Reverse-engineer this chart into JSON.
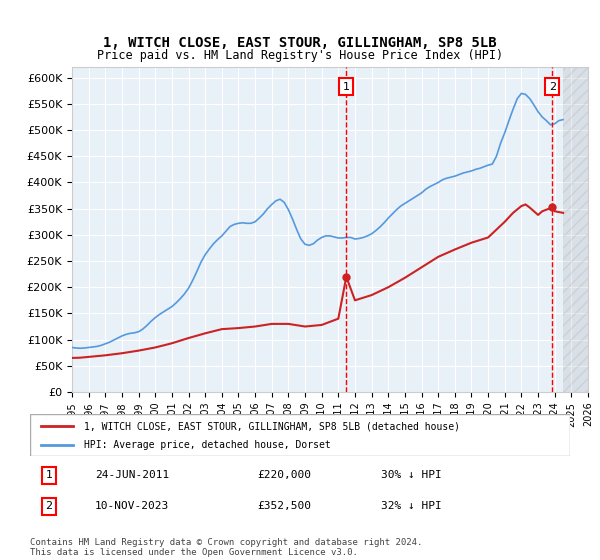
{
  "title": "1, WITCH CLOSE, EAST STOUR, GILLINGHAM, SP8 5LB",
  "subtitle": "Price paid vs. HM Land Registry's House Price Index (HPI)",
  "ylabel_ticks": [
    "£0",
    "£50K",
    "£100K",
    "£150K",
    "£200K",
    "£250K",
    "£300K",
    "£350K",
    "£400K",
    "£450K",
    "£500K",
    "£550K",
    "£600K"
  ],
  "ytick_values": [
    0,
    50000,
    100000,
    150000,
    200000,
    250000,
    300000,
    350000,
    400000,
    450000,
    500000,
    550000,
    600000
  ],
  "xlim": [
    1995,
    2026
  ],
  "ylim": [
    0,
    620000
  ],
  "bg_color": "#e8f0f8",
  "plot_bg": "#e8f0f8",
  "hpi_color": "#5599dd",
  "price_color": "#cc2222",
  "transaction1_x": 2011.48,
  "transaction1_y": 220000,
  "transaction2_x": 2023.86,
  "transaction2_y": 352500,
  "marker1_label": "1",
  "marker2_label": "2",
  "legend_line1": "1, WITCH CLOSE, EAST STOUR, GILLINGHAM, SP8 5LB (detached house)",
  "legend_line2": "HPI: Average price, detached house, Dorset",
  "annot1_num": "1",
  "annot1_date": "24-JUN-2011",
  "annot1_price": "£220,000",
  "annot1_hpi": "30% ↓ HPI",
  "annot2_num": "2",
  "annot2_date": "10-NOV-2023",
  "annot2_price": "£352,500",
  "annot2_hpi": "32% ↓ HPI",
  "footer": "Contains HM Land Registry data © Crown copyright and database right 2024.\nThis data is licensed under the Open Government Licence v3.0.",
  "hpi_data": {
    "years": [
      1995.0,
      1995.25,
      1995.5,
      1995.75,
      1996.0,
      1996.25,
      1996.5,
      1996.75,
      1997.0,
      1997.25,
      1997.5,
      1997.75,
      1998.0,
      1998.25,
      1998.5,
      1998.75,
      1999.0,
      1999.25,
      1999.5,
      1999.75,
      2000.0,
      2000.25,
      2000.5,
      2000.75,
      2001.0,
      2001.25,
      2001.5,
      2001.75,
      2002.0,
      2002.25,
      2002.5,
      2002.75,
      2003.0,
      2003.25,
      2003.5,
      2003.75,
      2004.0,
      2004.25,
      2004.5,
      2004.75,
      2005.0,
      2005.25,
      2005.5,
      2005.75,
      2006.0,
      2006.25,
      2006.5,
      2006.75,
      2007.0,
      2007.25,
      2007.5,
      2007.75,
      2008.0,
      2008.25,
      2008.5,
      2008.75,
      2009.0,
      2009.25,
      2009.5,
      2009.75,
      2010.0,
      2010.25,
      2010.5,
      2010.75,
      2011.0,
      2011.25,
      2011.5,
      2011.75,
      2012.0,
      2012.25,
      2012.5,
      2012.75,
      2013.0,
      2013.25,
      2013.5,
      2013.75,
      2014.0,
      2014.25,
      2014.5,
      2014.75,
      2015.0,
      2015.25,
      2015.5,
      2015.75,
      2016.0,
      2016.25,
      2016.5,
      2016.75,
      2017.0,
      2017.25,
      2017.5,
      2017.75,
      2018.0,
      2018.25,
      2018.5,
      2018.75,
      2019.0,
      2019.25,
      2019.5,
      2019.75,
      2020.0,
      2020.25,
      2020.5,
      2020.75,
      2021.0,
      2021.25,
      2021.5,
      2021.75,
      2022.0,
      2022.25,
      2022.5,
      2022.75,
      2023.0,
      2023.25,
      2023.5,
      2023.75,
      2024.0,
      2024.25,
      2024.5
    ],
    "values": [
      85000,
      84000,
      83500,
      84000,
      85000,
      86000,
      87000,
      89000,
      92000,
      95000,
      99000,
      103000,
      107000,
      110000,
      112000,
      113000,
      115000,
      120000,
      127000,
      135000,
      142000,
      148000,
      153000,
      158000,
      163000,
      170000,
      178000,
      187000,
      198000,
      213000,
      230000,
      248000,
      262000,
      273000,
      283000,
      291000,
      298000,
      307000,
      316000,
      320000,
      322000,
      323000,
      322000,
      322000,
      325000,
      332000,
      340000,
      350000,
      358000,
      365000,
      368000,
      362000,
      348000,
      330000,
      310000,
      292000,
      282000,
      280000,
      283000,
      290000,
      295000,
      298000,
      298000,
      296000,
      294000,
      294000,
      295000,
      295000,
      292000,
      293000,
      295000,
      298000,
      302000,
      308000,
      315000,
      323000,
      332000,
      340000,
      348000,
      355000,
      360000,
      365000,
      370000,
      375000,
      380000,
      387000,
      392000,
      396000,
      400000,
      405000,
      408000,
      410000,
      412000,
      415000,
      418000,
      420000,
      422000,
      425000,
      427000,
      430000,
      433000,
      435000,
      450000,
      475000,
      495000,
      518000,
      540000,
      560000,
      570000,
      568000,
      560000,
      548000,
      535000,
      525000,
      518000,
      510000,
      512000,
      518000,
      520000
    ]
  },
  "price_data": {
    "years": [
      1995.0,
      1995.5,
      1996.0,
      1997.0,
      1998.0,
      1999.0,
      2000.0,
      2001.0,
      2002.0,
      2003.0,
      2004.0,
      2005.0,
      2006.0,
      2007.0,
      2008.0,
      2009.0,
      2010.0,
      2011.0,
      2011.48,
      2012.0,
      2013.0,
      2014.0,
      2015.0,
      2016.0,
      2017.0,
      2018.0,
      2019.0,
      2019.5,
      2020.0,
      2020.5,
      2021.0,
      2021.5,
      2022.0,
      2022.25,
      2022.5,
      2022.75,
      2023.0,
      2023.25,
      2023.5,
      2023.86,
      2024.0,
      2024.5
    ],
    "values": [
      65000,
      65500,
      67000,
      70000,
      74000,
      79000,
      85000,
      93000,
      103000,
      112000,
      120000,
      122000,
      125000,
      130000,
      130000,
      125000,
      128000,
      140000,
      220000,
      175000,
      185000,
      200000,
      218000,
      238000,
      258000,
      272000,
      285000,
      290000,
      295000,
      310000,
      325000,
      342000,
      355000,
      358000,
      352000,
      345000,
      338000,
      345000,
      348000,
      352500,
      345000,
      342000
    ]
  },
  "hatch_region_start": 2024.5,
  "xticks": [
    1995,
    1996,
    1997,
    1998,
    1999,
    2000,
    2001,
    2002,
    2003,
    2004,
    2005,
    2006,
    2007,
    2008,
    2009,
    2010,
    2011,
    2012,
    2013,
    2014,
    2015,
    2016,
    2017,
    2018,
    2019,
    2020,
    2021,
    2022,
    2023,
    2024,
    2025,
    2026
  ]
}
